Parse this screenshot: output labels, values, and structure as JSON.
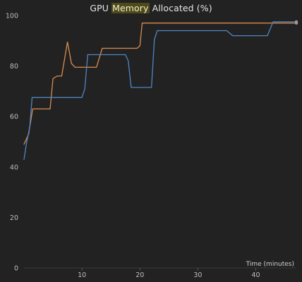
{
  "chart_data": {
    "type": "line",
    "title_parts": [
      "GPU ",
      "Memory",
      " Allocated (%)"
    ],
    "xlabel": "Time (minutes)",
    "ylabel": "",
    "xlim": [
      0,
      47
    ],
    "ylim": [
      0,
      100
    ],
    "x_ticks": [
      10,
      20,
      30,
      40
    ],
    "y_ticks": [
      0,
      20,
      40,
      60,
      80,
      100
    ],
    "grid": false,
    "colors": {
      "background": "#222222",
      "series_orange": "#d98c4f",
      "series_blue": "#4f86c4",
      "end_marker": "#9a9a9a",
      "highlight": "#4f4b18"
    },
    "series": [
      {
        "color": "#d98c4f",
        "points": [
          [
            0,
            49
          ],
          [
            0.8,
            53
          ],
          [
            1.5,
            63
          ],
          [
            2.5,
            63
          ],
          [
            4.0,
            63
          ],
          [
            4.5,
            63
          ],
          [
            5.0,
            75
          ],
          [
            5.7,
            76
          ],
          [
            6.5,
            76
          ],
          [
            7.5,
            89.5
          ],
          [
            8.2,
            81
          ],
          [
            8.8,
            79.5
          ],
          [
            9.5,
            79.5
          ],
          [
            11.5,
            79.5
          ],
          [
            12.5,
            79.5
          ],
          [
            13.5,
            87
          ],
          [
            15.0,
            87
          ],
          [
            17.5,
            87
          ],
          [
            18.5,
            87
          ],
          [
            19.5,
            87
          ],
          [
            20.0,
            88
          ],
          [
            20.4,
            97
          ],
          [
            25.0,
            97
          ],
          [
            30.0,
            97
          ],
          [
            35.0,
            97
          ],
          [
            40.0,
            97
          ],
          [
            43.0,
            97
          ],
          [
            47.0,
            97
          ]
        ]
      },
      {
        "color": "#4f86c4",
        "points": [
          [
            0,
            43
          ],
          [
            0.4,
            49
          ],
          [
            1.0,
            56
          ],
          [
            1.4,
            67.5
          ],
          [
            3.0,
            67.5
          ],
          [
            6.0,
            67.5
          ],
          [
            8.0,
            67.5
          ],
          [
            9.0,
            67.5
          ],
          [
            10.0,
            67.5
          ],
          [
            10.5,
            71
          ],
          [
            11.0,
            84.5
          ],
          [
            13.0,
            84.5
          ],
          [
            15.0,
            84.5
          ],
          [
            16.5,
            84.5
          ],
          [
            17.5,
            84.5
          ],
          [
            18.0,
            82
          ],
          [
            18.5,
            71.5
          ],
          [
            20.0,
            71.5
          ],
          [
            21.5,
            71.5
          ],
          [
            22.0,
            71.5
          ],
          [
            22.5,
            90.5
          ],
          [
            23.0,
            94
          ],
          [
            25.0,
            94
          ],
          [
            30.0,
            94
          ],
          [
            34.0,
            94
          ],
          [
            35.0,
            94
          ],
          [
            36.0,
            92
          ],
          [
            38.0,
            92
          ],
          [
            40.0,
            92
          ],
          [
            42.0,
            92
          ],
          [
            43.0,
            97.5
          ],
          [
            45.0,
            97.5
          ],
          [
            47.0,
            97.5
          ]
        ]
      }
    ]
  }
}
